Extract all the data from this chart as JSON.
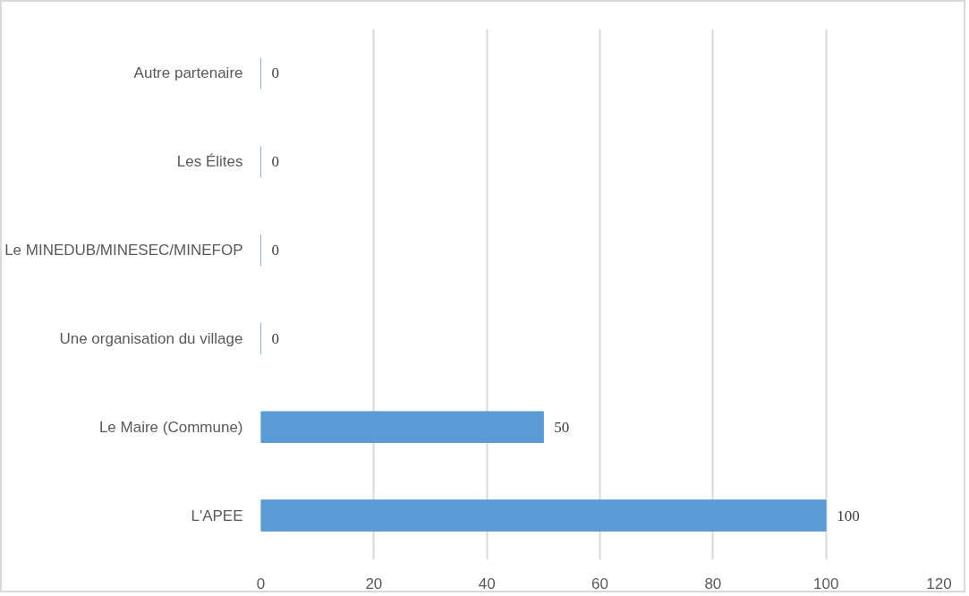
{
  "chart_data": {
    "type": "bar",
    "orientation": "horizontal",
    "categories": [
      "Autre partenaire",
      "Les Élites",
      "Le MINEDUB/MINESEC/MINEFOP",
      "Une organisation du village",
      "Le Maire (Commune)",
      "L'APEE"
    ],
    "values": [
      0,
      0,
      0,
      0,
      50,
      100
    ],
    "color": "#5b9bd5",
    "xlim": [
      0,
      120
    ],
    "xticks": [
      0,
      20,
      40,
      60,
      80,
      100,
      120
    ],
    "grid": "x",
    "data_labels": true
  }
}
